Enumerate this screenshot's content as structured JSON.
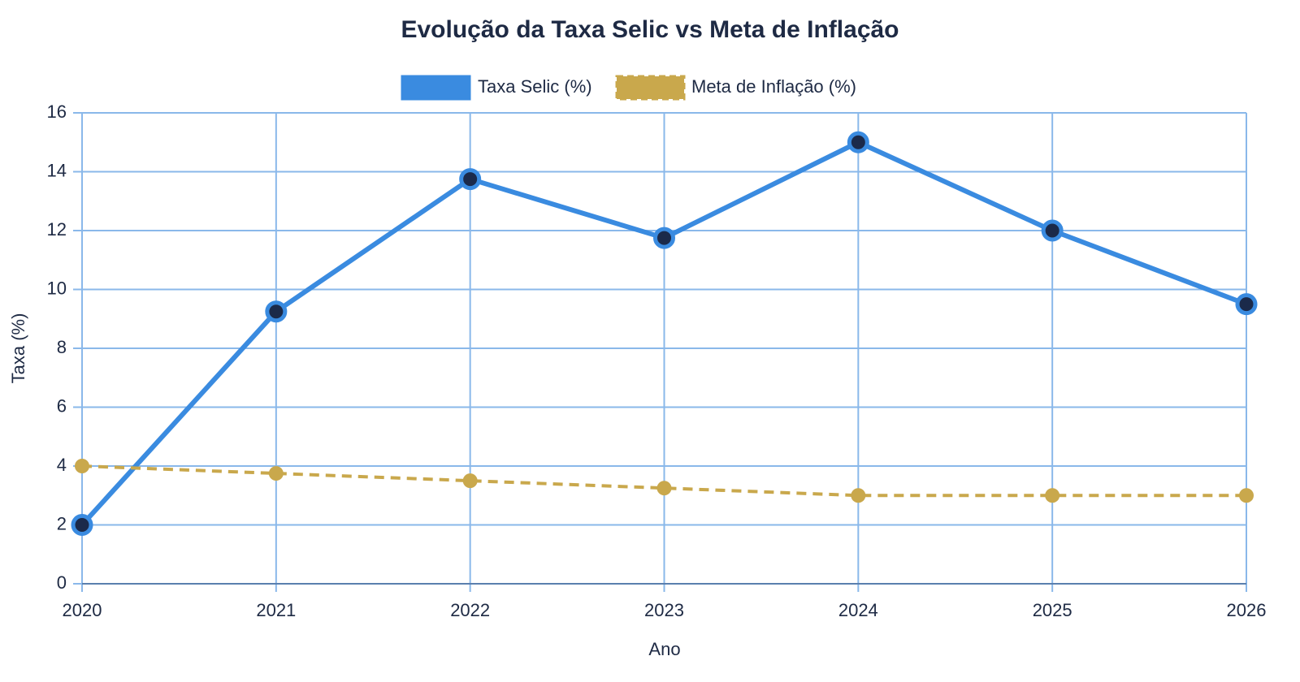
{
  "chart_data": {
    "type": "line",
    "title": "Evolução da Taxa Selic vs Meta de Inflação",
    "x_label": "Ano",
    "y_label": "Taxa (%)",
    "categories": [
      "2020",
      "2021",
      "2022",
      "2023",
      "2024",
      "2025",
      "2026"
    ],
    "series": [
      {
        "name": "Taxa Selic (%)",
        "color": "#3a8be0",
        "point_color": "#1b2a4a",
        "dashed": false,
        "values": [
          2.0,
          9.25,
          13.75,
          11.75,
          15.0,
          12.0,
          9.5
        ]
      },
      {
        "name": "Meta de Inflação (%)",
        "color": "#c9a84c",
        "point_color": "#c9a84c",
        "dashed": true,
        "values": [
          4.0,
          3.75,
          3.5,
          3.25,
          3.0,
          3.0,
          3.0
        ]
      }
    ],
    "ylim": [
      0,
      16
    ],
    "yticks": [
      0,
      2,
      4,
      6,
      8,
      10,
      12,
      14,
      16
    ],
    "grid": true,
    "legend": "top"
  }
}
